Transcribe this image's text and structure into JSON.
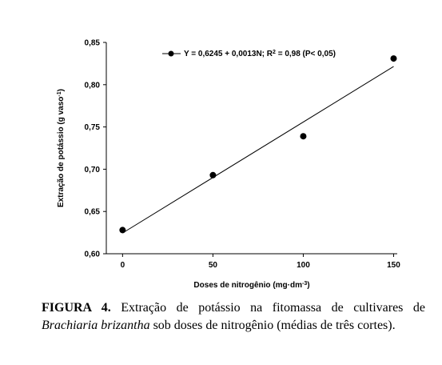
{
  "chart_data": {
    "type": "scatter",
    "x": [
      0,
      50,
      100,
      150
    ],
    "values": [
      0.628,
      0.693,
      0.739,
      0.831
    ],
    "color": "#000000",
    "fit": {
      "x": [
        0,
        150
      ],
      "values": [
        0.6245,
        0.8215
      ]
    },
    "legend": {
      "text": "Y = 0,6245 + 0,0013N; R",
      "sup": "2",
      "end": " = 0,98 (P< 0,05)"
    },
    "xlabel": {
      "text": "Doses de nitrogênio (mg·dm",
      "sup": "-3",
      "end": ")"
    },
    "ylabel": {
      "text": "Extração de potássio (g vaso",
      "sup": "-1",
      "end": ")"
    },
    "xlim": [
      -9,
      152
    ],
    "ylim": [
      0.6,
      0.85
    ],
    "xticks": [
      0,
      50,
      100,
      150
    ],
    "yticks": [
      {
        "value": 0.6,
        "label": "0,60"
      },
      {
        "value": 0.65,
        "label": "0,65"
      },
      {
        "value": 0.7,
        "label": "0,70"
      },
      {
        "value": 0.75,
        "label": "0,75"
      },
      {
        "value": 0.8,
        "label": "0,80"
      },
      {
        "value": 0.85,
        "label": "0,85"
      }
    ]
  },
  "caption": {
    "label": "FIGURA 4.",
    "text1": "Extração de potássio na fitomassa de cultivares de",
    "species": "Brachiaria brizantha",
    "text2": "sob doses de nitrogênio (médias de três cortes)."
  }
}
